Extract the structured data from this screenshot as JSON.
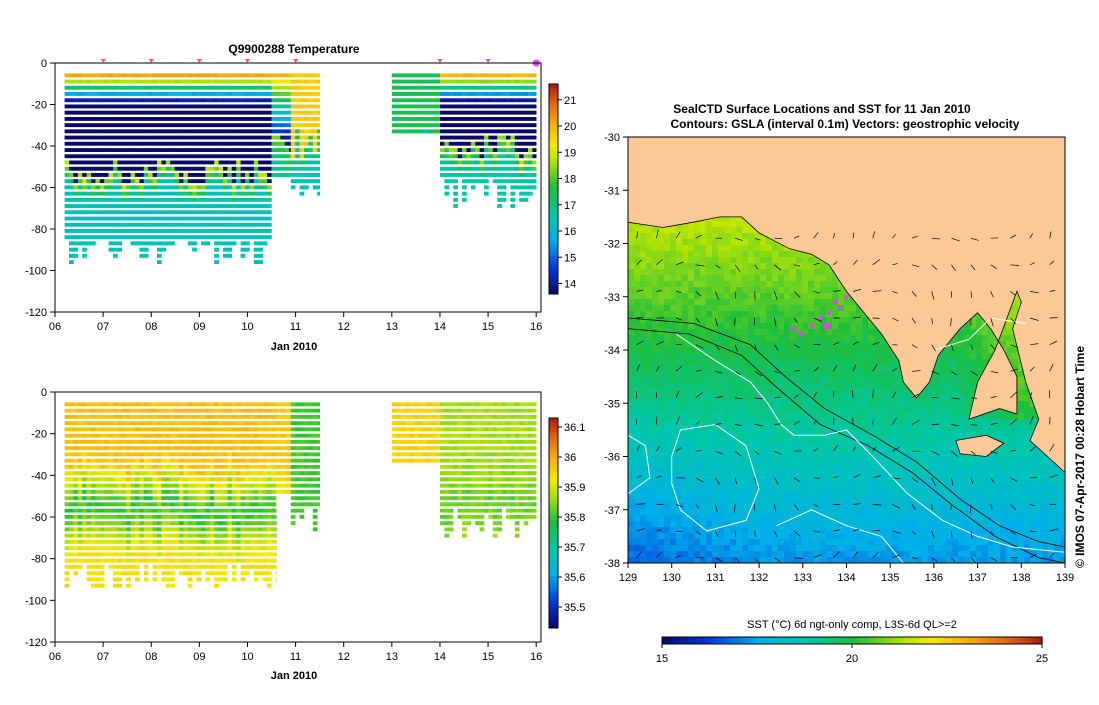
{
  "page": {
    "imos_stamp": "© IMOS 07-Apr-2017 00:28 Hobart Time"
  },
  "colors": {
    "land": "#fcc896",
    "profile_marker": "#ff33ff",
    "contour": "#ffffff",
    "vector": "#000000"
  },
  "chart_data": [
    {
      "id": "temperature_section",
      "type": "heatmap",
      "title": "Q9900288  Temperature",
      "xlabel": "Jan 2010",
      "ylabel": "",
      "x_ticks": [
        "06",
        "07",
        "08",
        "09",
        "10",
        "11",
        "12",
        "13",
        "14",
        "15",
        "16"
      ],
      "xlim": [
        6,
        16.1
      ],
      "y_ticks": [
        0,
        -20,
        -40,
        -60,
        -80,
        -100,
        -120
      ],
      "ylim": [
        -120,
        0
      ],
      "colorbar": {
        "range": [
          13.6,
          21.6
        ],
        "ticks": [
          14,
          15,
          16,
          17,
          18,
          19,
          20,
          21
        ]
      },
      "day_marks": [
        7,
        8,
        9,
        10,
        11,
        14,
        15,
        16
      ],
      "segments": [
        {
          "x_start": 6.2,
          "x_end": 10.5,
          "surface_value": 20.1,
          "warm_value": 20.6,
          "thermocline_depth": -52,
          "deep_value": 16.3,
          "max_depth": -90
        },
        {
          "x_start": 10.5,
          "x_end": 10.9,
          "surface_value": 19.8,
          "warm_value": 20.0,
          "thermocline_depth": -40,
          "deep_value": 16.9,
          "max_depth": -55
        },
        {
          "x_start": 10.9,
          "x_end": 11.5,
          "surface_value": 19.6,
          "warm_value": 19.6,
          "thermocline_depth": -38,
          "deep_value": 16.3,
          "max_depth": -61
        },
        {
          "x_start": 13.0,
          "x_end": 14.0,
          "surface_value": 17.4,
          "warm_value": 17.4,
          "thermocline_depth": -35,
          "deep_value": 17.4,
          "max_depth": -35
        },
        {
          "x_start": 14.0,
          "x_end": 16.0,
          "surface_value": 19.9,
          "warm_value": 20.4,
          "thermocline_depth": -40,
          "deep_value": 16.6,
          "max_depth": -62
        }
      ]
    },
    {
      "id": "salinity_section",
      "type": "heatmap",
      "title": "",
      "xlabel": "Jan 2010",
      "ylabel": "",
      "x_ticks": [
        "06",
        "07",
        "08",
        "09",
        "10",
        "11",
        "12",
        "13",
        "14",
        "15",
        "16"
      ],
      "xlim": [
        6,
        16.1
      ],
      "y_ticks": [
        0,
        -20,
        -40,
        -60,
        -80,
        -100,
        -120
      ],
      "ylim": [
        -120,
        0
      ],
      "colorbar": {
        "range": [
          35.43,
          36.13
        ],
        "ticks": [
          "35.5",
          "35.6",
          "35.7",
          "35.8",
          "35.9",
          "36",
          "36.1"
        ]
      },
      "segments": [
        {
          "x_start": 6.2,
          "x_end": 10.6,
          "surface_value": 35.97,
          "mid_value": 35.78,
          "deep_value": 35.93,
          "max_depth": -88
        },
        {
          "x_start": 10.6,
          "x_end": 10.9,
          "surface_value": 35.96,
          "mid_value": 35.91,
          "deep_value": 35.91,
          "max_depth": -50
        },
        {
          "x_start": 10.9,
          "x_end": 11.5,
          "surface_value": 35.8,
          "mid_value": 35.8,
          "deep_value": 35.8,
          "max_depth": -61
        },
        {
          "x_start": 13.0,
          "x_end": 14.0,
          "surface_value": 35.95,
          "mid_value": 35.95,
          "deep_value": 35.95,
          "max_depth": -35
        },
        {
          "x_start": 14.0,
          "x_end": 16.0,
          "surface_value": 35.86,
          "mid_value": 35.82,
          "deep_value": 35.87,
          "max_depth": -62
        }
      ]
    },
    {
      "id": "sst_map",
      "type": "heatmap",
      "title": "SealCTD Surface Locations and SST for 11 Jan 2010",
      "subtitle": "Contours: GSLA (interval 0.1m) Vectors: geostrophic velocity",
      "xlabel": "",
      "ylabel": "",
      "x_ticks": [
        129,
        130,
        131,
        132,
        133,
        134,
        135,
        136,
        137,
        138,
        139
      ],
      "xlim": [
        129,
        139
      ],
      "y_ticks": [
        -30,
        -31,
        -32,
        -33,
        -34,
        -35,
        -36,
        -37,
        -38
      ],
      "ylim": [
        -38,
        -30
      ],
      "colorbar": {
        "label": "SST (°C) 6d ngt-only comp, L3S-6d QL>=2",
        "range": [
          15,
          25
        ],
        "ticks": [
          15,
          20,
          25
        ]
      },
      "seal_locations": [
        {
          "lon": 132.8,
          "lat": -33.6
        },
        {
          "lon": 132.95,
          "lat": -33.7
        },
        {
          "lon": 133.2,
          "lat": -33.55
        },
        {
          "lon": 133.4,
          "lat": -33.4
        },
        {
          "lon": 133.6,
          "lat": -33.3
        },
        {
          "lon": 133.75,
          "lat": -33.1
        },
        {
          "lon": 133.85,
          "lat": -33.2
        },
        {
          "lon": 133.55,
          "lat": -33.55
        },
        {
          "lon": 134.0,
          "lat": -33.0
        }
      ]
    }
  ]
}
